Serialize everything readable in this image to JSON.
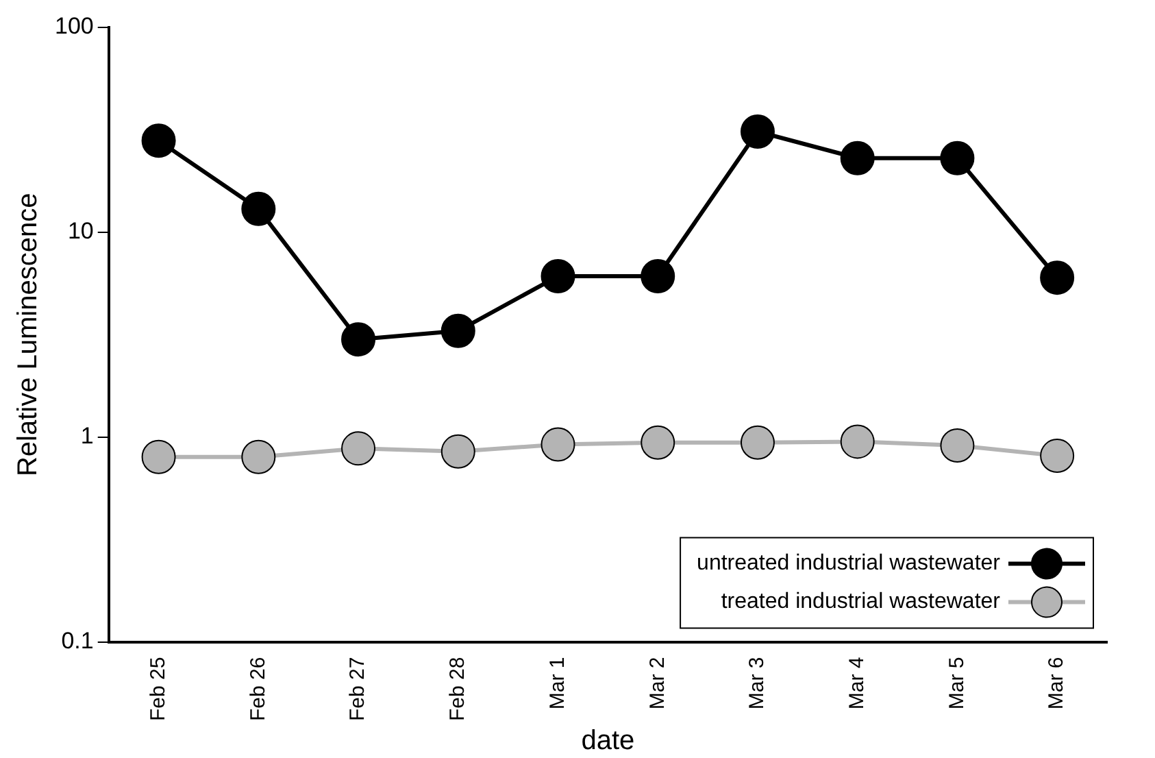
{
  "chart_data": {
    "type": "line",
    "xlabel": "date",
    "ylabel": "Relative Luminescence",
    "categories": [
      "Feb 25",
      "Feb 26",
      "Feb 27",
      "Feb 28",
      "Mar 1",
      "Mar 2",
      "Mar 3",
      "Mar 4",
      "Mar 5",
      "Mar 6"
    ],
    "series": [
      {
        "name": "untreated industrial wastewater",
        "color": "#000000",
        "values": [
          28,
          13,
          3.0,
          3.3,
          6.1,
          6.1,
          31,
          23,
          23,
          6.0
        ]
      },
      {
        "name": "treated industrial wastewater",
        "color": "#b4b4b4",
        "values": [
          0.8,
          0.8,
          0.88,
          0.85,
          0.92,
          0.94,
          0.94,
          0.95,
          0.91,
          0.81
        ]
      }
    ],
    "log": "y",
    "ylim": [
      0.1,
      100
    ],
    "yticks": [
      0.1,
      1,
      10,
      100
    ],
    "grid": false,
    "legend": "bottom right",
    "marker": "circle",
    "line_style": "solid"
  }
}
